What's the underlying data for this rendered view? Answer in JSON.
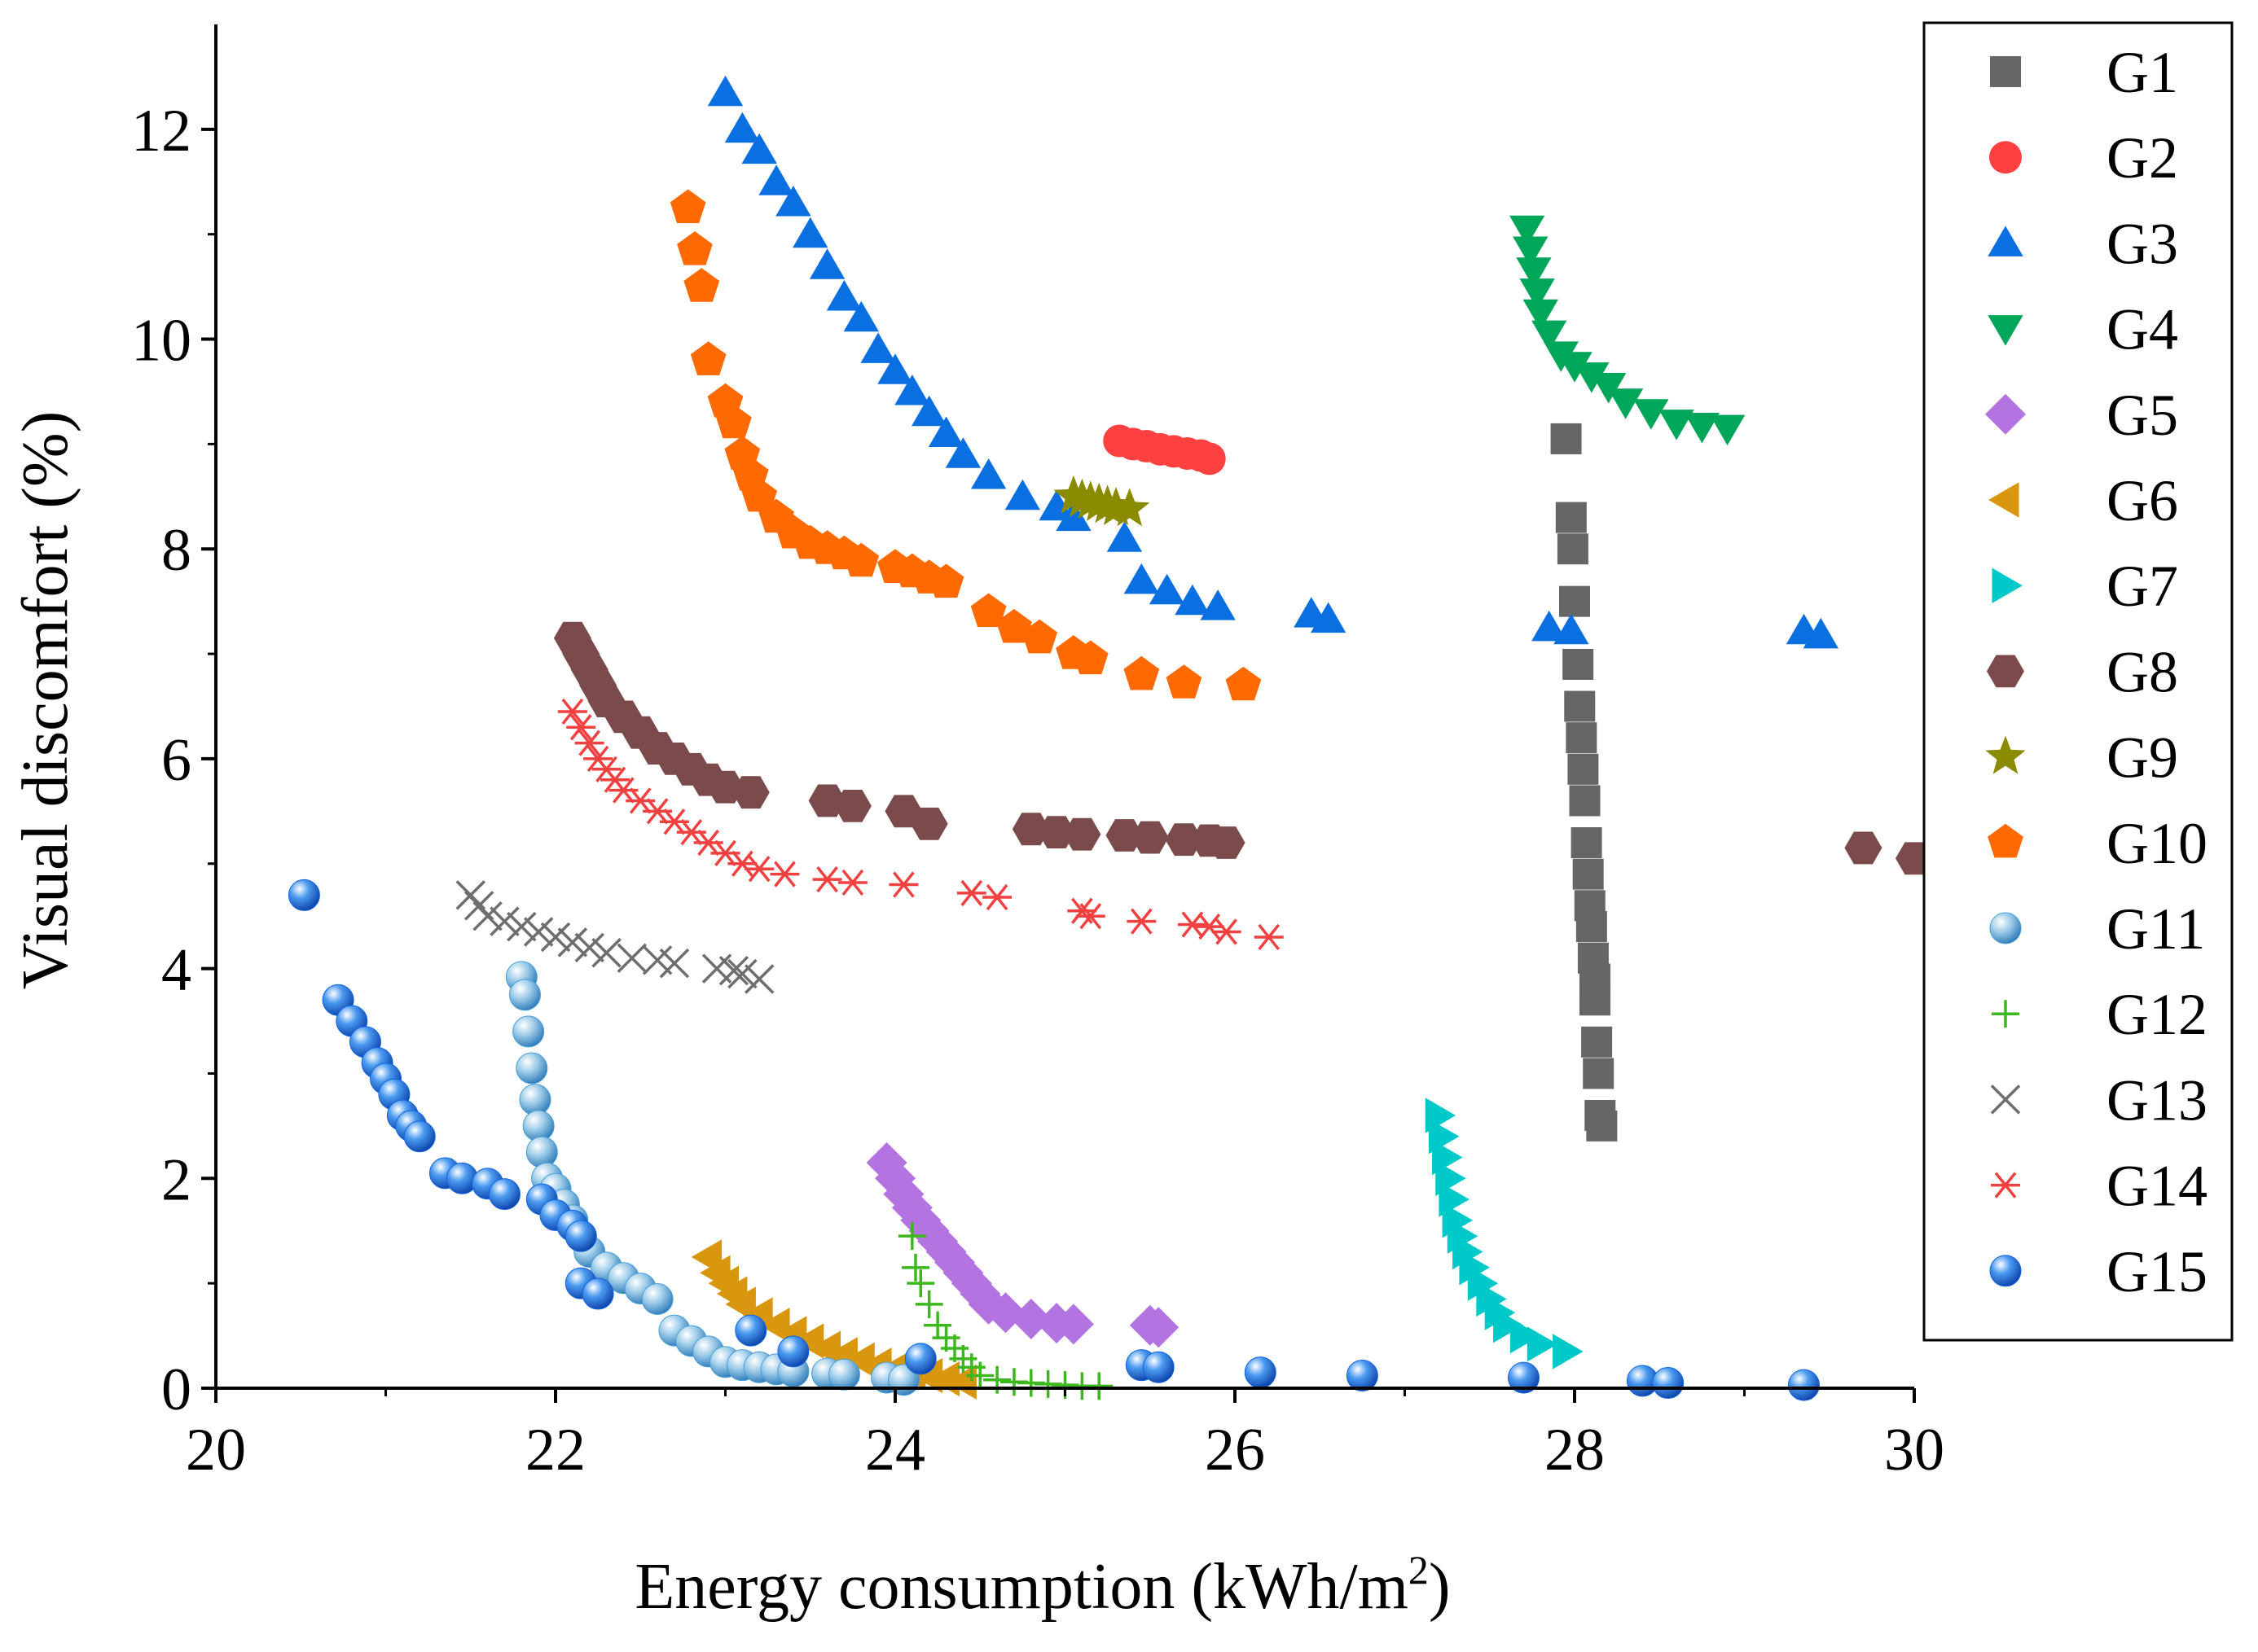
{
  "chart_data": {
    "type": "scatter",
    "xlabel": "Energy consumption (kWh/m",
    "xlabel_sup": "2",
    "xlabel_end": ")",
    "ylabel": "Visual discomfort  (%)",
    "xlim": [
      20,
      30
    ],
    "ylim": [
      0,
      13
    ],
    "xticks": [
      20,
      22,
      24,
      26,
      28,
      30
    ],
    "yticks": [
      0,
      2,
      4,
      6,
      8,
      10,
      12
    ],
    "legend_position": "right",
    "series": [
      {
        "name": "G1",
        "marker": "square",
        "color": "#666666",
        "x": [
          27.95,
          27.98,
          27.99,
          28.0,
          28.02,
          28.03,
          28.04,
          28.05,
          28.06,
          28.07,
          28.08,
          28.09,
          28.1,
          28.11,
          28.12,
          28.12,
          28.13,
          28.14,
          28.15,
          28.16
        ],
        "y": [
          9.05,
          8.3,
          8.0,
          7.5,
          6.9,
          6.5,
          6.2,
          5.9,
          5.6,
          5.2,
          4.9,
          4.6,
          4.4,
          4.1,
          3.9,
          3.7,
          3.3,
          3.0,
          2.6,
          2.5
        ]
      },
      {
        "name": "G2",
        "marker": "circle",
        "color": "#ff4040",
        "x": [
          25.32,
          25.4,
          25.48,
          25.56,
          25.64,
          25.72,
          25.8,
          25.85
        ],
        "y": [
          9.03,
          9.0,
          8.98,
          8.95,
          8.93,
          8.91,
          8.89,
          8.86
        ]
      },
      {
        "name": "G3",
        "marker": "triangle-up",
        "color": "#0a6fe0",
        "x": [
          23.0,
          23.1,
          23.2,
          23.3,
          23.4,
          23.5,
          23.6,
          23.7,
          23.8,
          23.9,
          24.0,
          24.1,
          24.2,
          24.3,
          24.4,
          24.55,
          24.75,
          24.95,
          25.05,
          25.35,
          25.45,
          25.6,
          25.75,
          25.9,
          26.45,
          26.55,
          27.85,
          27.98,
          29.35,
          29.45
        ],
        "y": [
          12.35,
          12.0,
          11.8,
          11.5,
          11.3,
          11.0,
          10.7,
          10.4,
          10.2,
          9.9,
          9.7,
          9.5,
          9.3,
          9.1,
          8.9,
          8.7,
          8.5,
          8.4,
          8.3,
          8.1,
          7.7,
          7.6,
          7.5,
          7.45,
          7.38,
          7.33,
          7.25,
          7.22,
          7.22,
          7.18
        ]
      },
      {
        "name": "G4",
        "marker": "triangle-down",
        "color": "#00a65a",
        "x": [
          27.72,
          27.74,
          27.76,
          27.78,
          27.8,
          27.85,
          27.92,
          28.0,
          28.1,
          28.2,
          28.3,
          28.45,
          28.6,
          28.75,
          28.9
        ],
        "y": [
          11.05,
          10.85,
          10.65,
          10.45,
          10.25,
          10.05,
          9.85,
          9.75,
          9.65,
          9.55,
          9.4,
          9.3,
          9.2,
          9.17,
          9.15
        ]
      },
      {
        "name": "G5",
        "marker": "diamond",
        "color": "#b373e0",
        "x": [
          23.95,
          24.0,
          24.05,
          24.1,
          24.15,
          24.2,
          24.25,
          24.3,
          24.35,
          24.4,
          24.45,
          24.5,
          24.55,
          24.65,
          24.8,
          24.95,
          25.05,
          25.5,
          25.55
        ],
        "y": [
          2.15,
          2.0,
          1.85,
          1.72,
          1.6,
          1.5,
          1.4,
          1.3,
          1.2,
          1.1,
          1.0,
          0.9,
          0.8,
          0.72,
          0.66,
          0.62,
          0.61,
          0.6,
          0.58
        ]
      },
      {
        "name": "G6",
        "marker": "triangle-left",
        "color": "#d9960f",
        "x": [
          22.9,
          22.95,
          23.0,
          23.05,
          23.1,
          23.2,
          23.3,
          23.4,
          23.5,
          23.6,
          23.7,
          23.8,
          23.9,
          24.0,
          24.1,
          24.2,
          24.3,
          24.4
        ],
        "y": [
          1.25,
          1.1,
          1.0,
          0.9,
          0.8,
          0.7,
          0.6,
          0.52,
          0.45,
          0.38,
          0.32,
          0.27,
          0.22,
          0.18,
          0.15,
          0.12,
          0.09,
          0.06
        ]
      },
      {
        "name": "G7",
        "marker": "triangle-right",
        "color": "#00c9c9",
        "x": [
          27.2,
          27.22,
          27.24,
          27.26,
          27.28,
          27.3,
          27.33,
          27.36,
          27.4,
          27.45,
          27.5,
          27.55,
          27.6,
          27.7,
          27.8,
          27.95
        ],
        "y": [
          2.6,
          2.4,
          2.2,
          2.0,
          1.8,
          1.6,
          1.45,
          1.3,
          1.15,
          1.0,
          0.85,
          0.72,
          0.6,
          0.5,
          0.42,
          0.35
        ]
      },
      {
        "name": "G8",
        "marker": "hexagon",
        "color": "#7b4a4a",
        "x": [
          22.1,
          22.15,
          22.2,
          22.25,
          22.3,
          22.4,
          22.5,
          22.6,
          22.7,
          22.8,
          22.9,
          23.0,
          23.15,
          23.6,
          23.75,
          24.05,
          24.2,
          24.8,
          24.95,
          25.1,
          25.35,
          25.5,
          25.7,
          25.85,
          25.95,
          29.7,
          30.0
        ],
        "y": [
          7.15,
          7.0,
          6.85,
          6.7,
          6.55,
          6.4,
          6.25,
          6.1,
          6.0,
          5.9,
          5.8,
          5.73,
          5.68,
          5.6,
          5.55,
          5.5,
          5.38,
          5.33,
          5.3,
          5.28,
          5.27,
          5.25,
          5.23,
          5.22,
          5.2,
          5.15,
          5.05
        ]
      },
      {
        "name": "G9",
        "marker": "star",
        "color": "#8b8b00",
        "x": [
          25.05,
          25.1,
          25.15,
          25.2,
          25.25,
          25.3,
          25.38
        ],
        "y": [
          8.5,
          8.47,
          8.45,
          8.43,
          8.41,
          8.39,
          8.38
        ]
      },
      {
        "name": "G10",
        "marker": "pentagon",
        "color": "#ff6a00",
        "x": [
          22.78,
          22.82,
          22.86,
          22.9,
          23.0,
          23.05,
          23.1,
          23.15,
          23.2,
          23.3,
          23.4,
          23.5,
          23.6,
          23.7,
          23.8,
          24.0,
          24.1,
          24.2,
          24.3,
          24.55,
          24.7,
          24.85,
          25.05,
          25.15,
          25.45,
          25.7,
          26.05
        ],
        "y": [
          11.25,
          10.85,
          10.5,
          9.8,
          9.4,
          9.2,
          8.9,
          8.7,
          8.5,
          8.3,
          8.15,
          8.05,
          8.0,
          7.95,
          7.88,
          7.82,
          7.78,
          7.72,
          7.68,
          7.4,
          7.25,
          7.15,
          7.0,
          6.95,
          6.8,
          6.72,
          6.7
        ]
      },
      {
        "name": "G11",
        "marker": "sphere",
        "color": "#4aa0d8",
        "x": [
          21.8,
          21.82,
          21.84,
          21.86,
          21.88,
          21.9,
          21.92,
          21.95,
          22.0,
          22.05,
          22.1,
          22.15,
          22.2,
          22.3,
          22.4,
          22.5,
          22.6,
          22.7,
          22.8,
          22.9,
          23.0,
          23.1,
          23.2,
          23.3,
          23.4,
          23.6,
          23.7,
          23.95,
          24.05
        ],
        "y": [
          3.92,
          3.75,
          3.4,
          3.05,
          2.75,
          2.5,
          2.25,
          2.0,
          1.9,
          1.75,
          1.6,
          1.45,
          1.3,
          1.15,
          1.05,
          0.95,
          0.85,
          0.55,
          0.45,
          0.35,
          0.25,
          0.22,
          0.2,
          0.18,
          0.16,
          0.14,
          0.13,
          0.1,
          0.08
        ]
      },
      {
        "name": "G12",
        "marker": "plus",
        "color": "#3cb81e",
        "x": [
          24.1,
          24.12,
          24.15,
          24.2,
          24.25,
          24.3,
          24.35,
          24.4,
          24.45,
          24.5,
          24.6,
          24.7,
          24.8,
          24.9,
          25.0,
          25.1,
          25.2
        ],
        "y": [
          1.45,
          1.15,
          1.0,
          0.8,
          0.6,
          0.48,
          0.38,
          0.28,
          0.2,
          0.12,
          0.08,
          0.06,
          0.05,
          0.04,
          0.03,
          0.02,
          0.02
        ]
      },
      {
        "name": "G13",
        "marker": "x",
        "color": "#6e6e6e",
        "x": [
          21.5,
          21.55,
          21.6,
          21.7,
          21.8,
          21.9,
          22.0,
          22.1,
          22.2,
          22.3,
          22.45,
          22.6,
          22.7,
          22.95,
          23.05,
          23.1,
          23.2
        ],
        "y": [
          4.7,
          4.6,
          4.5,
          4.45,
          4.4,
          4.35,
          4.3,
          4.25,
          4.2,
          4.15,
          4.1,
          4.08,
          4.05,
          4.0,
          3.98,
          3.95,
          3.9
        ]
      },
      {
        "name": "G14",
        "marker": "asterisk",
        "color": "#f04040",
        "x": [
          22.1,
          22.15,
          22.2,
          22.25,
          22.3,
          22.35,
          22.4,
          22.5,
          22.6,
          22.7,
          22.8,
          22.9,
          23.0,
          23.1,
          23.2,
          23.35,
          23.6,
          23.75,
          24.05,
          24.45,
          24.6,
          25.1,
          25.15,
          25.45,
          25.75,
          25.85,
          25.95,
          26.2
        ],
        "y": [
          6.45,
          6.3,
          6.15,
          6.0,
          5.9,
          5.8,
          5.7,
          5.6,
          5.5,
          5.4,
          5.3,
          5.2,
          5.1,
          5.0,
          4.95,
          4.9,
          4.85,
          4.82,
          4.8,
          4.72,
          4.68,
          4.55,
          4.5,
          4.45,
          4.42,
          4.4,
          4.35,
          4.3
        ]
      },
      {
        "name": "G15",
        "marker": "sphere",
        "color": "#1466e0",
        "x": [
          20.52,
          20.72,
          20.8,
          20.88,
          20.95,
          21.0,
          21.05,
          21.1,
          21.15,
          21.2,
          21.35,
          21.45,
          21.6,
          21.7,
          21.92,
          22.0,
          22.1,
          22.15,
          22.15,
          22.25,
          23.15,
          23.4,
          24.15,
          25.45,
          25.55,
          26.15,
          26.75,
          27.7,
          28.4,
          28.55,
          29.35
        ],
        "y": [
          4.7,
          3.7,
          3.5,
          3.3,
          3.1,
          2.95,
          2.8,
          2.6,
          2.5,
          2.4,
          2.05,
          2.0,
          1.95,
          1.85,
          1.8,
          1.65,
          1.55,
          1.45,
          1.0,
          0.9,
          0.55,
          0.35,
          0.28,
          0.22,
          0.2,
          0.15,
          0.12,
          0.1,
          0.07,
          0.05,
          0.03
        ]
      }
    ]
  }
}
